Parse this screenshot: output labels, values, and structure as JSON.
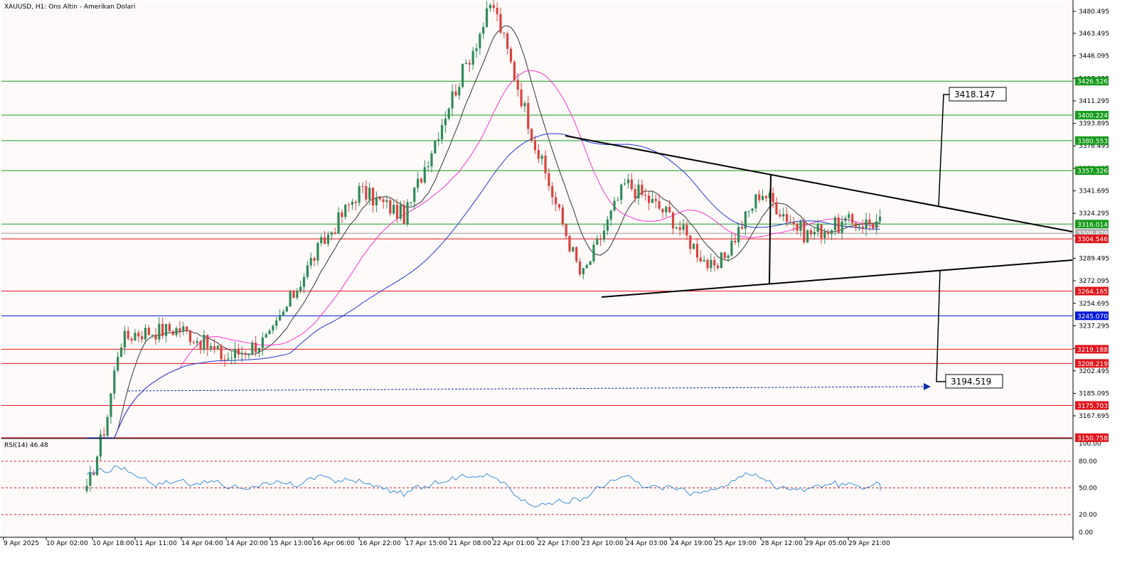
{
  "chart_title": "XAUUSD, H1:  Ons Altin - Amerikan Dolari",
  "rsi_title": "RSI(14) 46.48",
  "target_up_label": "3418.147",
  "target_down_label": "3194.519",
  "colors": {
    "background": "#fffafa",
    "bull": "#2e8b57",
    "bear": "#d9433f",
    "ma_short": "#333333",
    "ma_mid": "#ff33cc",
    "ma_long": "#1f37d6",
    "support": "#e0141a",
    "resistance": "#159a1a",
    "pivot_blue": "#0018d8",
    "rsi_line": "#3a8fd9",
    "rsi_levels": "#cc2222",
    "trendline": "#000000"
  },
  "chart_data": [
    {
      "type": "candlestick",
      "symbol": "XAUUSD",
      "timeframe": "H1",
      "title": "XAUUSD, H1:  Ons Altin - Amerikan Dolari",
      "ylim": [
        3150.7,
        3488.2
      ],
      "y_ticks": [
        "3480.495",
        "3463.495",
        "3446.095",
        "3428.695",
        "3411.295",
        "3393.895",
        "3376.495",
        "3359.095",
        "3341.695",
        "3324.295",
        "3306.895",
        "3289.495",
        "3272.095",
        "3254.695",
        "3237.295",
        "3219.895",
        "3202.495",
        "3185.095",
        "3167.695"
      ],
      "x_ticks": [
        "9 Apr 2025",
        "10 Apr 02:00",
        "10 Apr 18:00",
        "11 Apr 11:00",
        "14 Apr 04:00",
        "14 Apr 20:00",
        "15 Apr 13:00",
        "16 Apr 06:00",
        "16 Apr 22:00",
        "17 Apr 15:00",
        "21 Apr 08:00",
        "22 Apr 01:00",
        "22 Apr 17:00",
        "23 Apr 10:00",
        "24 Apr 03:00",
        "24 Apr 19:00",
        "25 Apr 19:00",
        "28 Apr 12:00",
        "29 Apr 05:00",
        "29 Apr 21:00"
      ],
      "price_path": [
        {
          "t": "9 Apr 2025",
          "price": 3100
        },
        {
          "t": "10 Apr 18:00",
          "price": 3165
        },
        {
          "t": "10 Apr 18:00",
          "price": 3225
        },
        {
          "t": "11 Apr 11:00",
          "price": 3232
        },
        {
          "t": "14 Apr 04:00",
          "price": 3235
        },
        {
          "t": "14 Apr 20:00",
          "price": 3212
        },
        {
          "t": "15 Apr 13:00",
          "price": 3228
        },
        {
          "t": "16 Apr 06:00",
          "price": 3290
        },
        {
          "t": "16 Apr 22:00",
          "price": 3342
        },
        {
          "t": "17 Apr 15:00",
          "price": 3322
        },
        {
          "t": "21 Apr 08:00",
          "price": 3410
        },
        {
          "t": "22 Apr 01:00",
          "price": 3487
        },
        {
          "t": "22 Apr 17:00",
          "price": 3372
        },
        {
          "t": "23 Apr 10:00",
          "price": 3274
        },
        {
          "t": "24 Apr 03:00",
          "price": 3348
        },
        {
          "t": "24 Apr 19:00",
          "price": 3322
        },
        {
          "t": "25 Apr 19:00",
          "price": 3278
        },
        {
          "t": "28 Apr 12:00",
          "price": 3342
        },
        {
          "t": "29 Apr 05:00",
          "price": 3308
        },
        {
          "t": "29 Apr 21:00",
          "price": 3317
        }
      ],
      "horizontal_levels": [
        {
          "value": 3426.526,
          "label": "3426.526",
          "kind": "resistance"
        },
        {
          "value": 3400.224,
          "label": "3400.224",
          "kind": "resistance"
        },
        {
          "value": 3380.553,
          "label": "3380.553",
          "kind": "resistance"
        },
        {
          "value": 3357.326,
          "label": "3357.326",
          "kind": "resistance"
        },
        {
          "value": 3316.014,
          "label": "3316.014",
          "kind": "resistance"
        },
        {
          "value": 3308.879,
          "label": "3308.879",
          "kind": "current"
        },
        {
          "value": 3304.546,
          "label": "3304.546",
          "kind": "support"
        },
        {
          "value": 3264.165,
          "label": "3264.165",
          "kind": "support"
        },
        {
          "value": 3245.07,
          "label": "3245.070",
          "kind": "pivot"
        },
        {
          "value": 3219.188,
          "label": "3219.188",
          "kind": "support"
        },
        {
          "value": 3208.219,
          "label": "3208.219",
          "kind": "support"
        },
        {
          "value": 3175.703,
          "label": "3175.703",
          "kind": "support"
        },
        {
          "value": 3150.758,
          "label": "3150.758",
          "kind": "support"
        }
      ],
      "annotations": [
        {
          "text": "3418.147",
          "kind": "target-up"
        },
        {
          "text": "3194.519",
          "kind": "target-down"
        }
      ]
    },
    {
      "type": "line",
      "title": "RSI(14) 46.48",
      "ylim": [
        0,
        100
      ],
      "y_ticks": [
        "100.00",
        "80.00",
        "50.00",
        "20.00",
        "0.00"
      ],
      "levels": [
        80,
        50,
        20
      ],
      "last_value": 46.48
    }
  ]
}
